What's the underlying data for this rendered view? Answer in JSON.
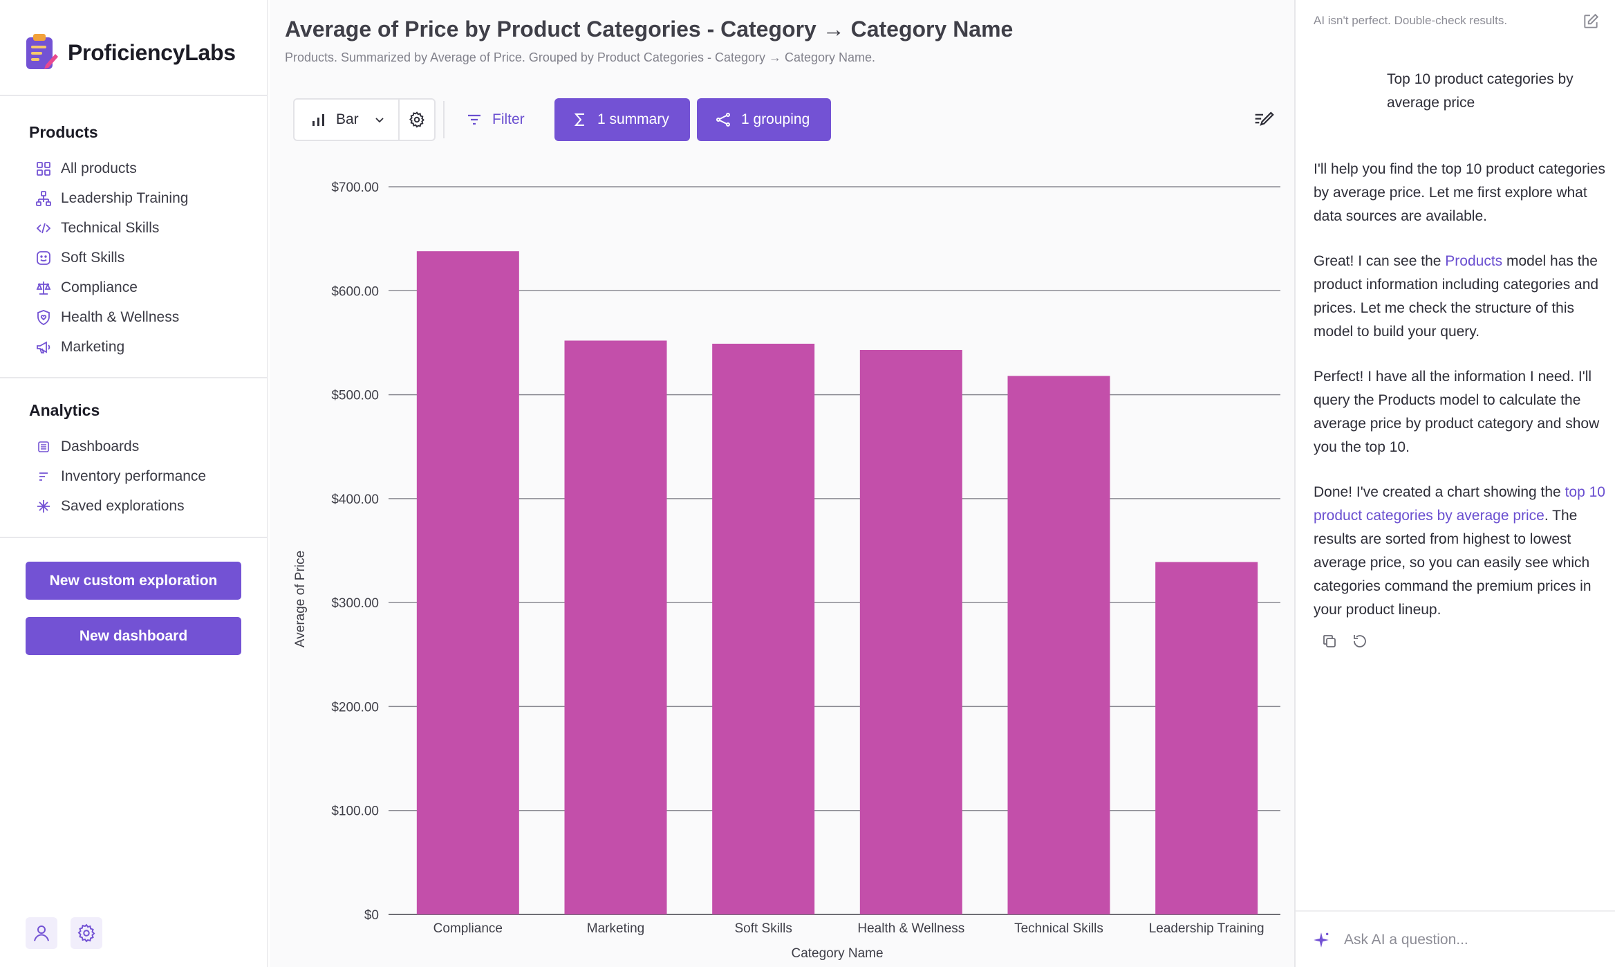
{
  "brand": {
    "name": "ProficiencyLabs"
  },
  "sidebar": {
    "products": {
      "heading": "Products",
      "items": [
        {
          "label": "All products",
          "icon": "grid-icon"
        },
        {
          "label": "Leadership Training",
          "icon": "hierarchy-icon"
        },
        {
          "label": "Technical Skills",
          "icon": "code-icon"
        },
        {
          "label": "Soft Skills",
          "icon": "smile-icon"
        },
        {
          "label": "Compliance",
          "icon": "scale-icon"
        },
        {
          "label": "Health & Wellness",
          "icon": "shield-heart-icon"
        },
        {
          "label": "Marketing",
          "icon": "megaphone-icon"
        }
      ]
    },
    "analytics": {
      "heading": "Analytics",
      "items": [
        {
          "label": "Dashboards",
          "icon": "dashboard-icon"
        },
        {
          "label": "Inventory performance",
          "icon": "lines-icon"
        },
        {
          "label": "Saved explorations",
          "icon": "sparkle-icon"
        }
      ]
    },
    "buttons": {
      "new_exploration": "New custom exploration",
      "new_dashboard": "New dashboard"
    }
  },
  "main": {
    "title": "Average of Price by Product Categories - Category → Category Name",
    "subtitle": "Products. Summarized by Average of Price. Grouped by Product Categories - Category → Category Name.",
    "toolbar": {
      "chart_type": "Bar",
      "filter": "Filter",
      "summary": "1 summary",
      "grouping": "1 grouping"
    }
  },
  "chart_data": {
    "type": "bar",
    "categories": [
      "Compliance",
      "Marketing",
      "Soft Skills",
      "Health & Wellness",
      "Technical Skills",
      "Leadership Training"
    ],
    "values": [
      638,
      552,
      549,
      543,
      518,
      339
    ],
    "xlabel": "Category Name",
    "ylabel": "Average of Price",
    "ylim": [
      0,
      700
    ],
    "yticks": [
      0,
      100,
      200,
      300,
      400,
      500,
      600,
      700
    ],
    "ytick_labels": [
      "$0",
      "$100.00",
      "$200.00",
      "$300.00",
      "$400.00",
      "$500.00",
      "$600.00",
      "$700.00"
    ],
    "grid": true,
    "bar_color": "#c34faa"
  },
  "ai": {
    "disclaimer": "AI isn't perfect. Double-check results.",
    "user_prompt": "Top 10 product categories by average price",
    "msg1": "I'll help you find the top 10 product categories by average price. Let me first explore what data sources are available.",
    "msg2_pre": "Great! I can see the ",
    "msg2_link": "Products",
    "msg2_post": " model has the product information including categories and prices. Let me check the structure of this model to build your query.",
    "msg3": "Perfect! I have all the information I need. I'll query the Products model to calculate the average price by product category and show you the top 10.",
    "msg4_pre": "Done! I've created a chart showing the ",
    "msg4_link": "top 10 product categories by average price",
    "msg4_post": ". The results are sorted from highest to lowest average price, so you can easily see which categories command the premium prices in your product lineup.",
    "input_placeholder": "Ask AI a question..."
  },
  "colors": {
    "accent": "#7352d4",
    "bar": "#c34faa",
    "link": "#6a4fd0"
  }
}
